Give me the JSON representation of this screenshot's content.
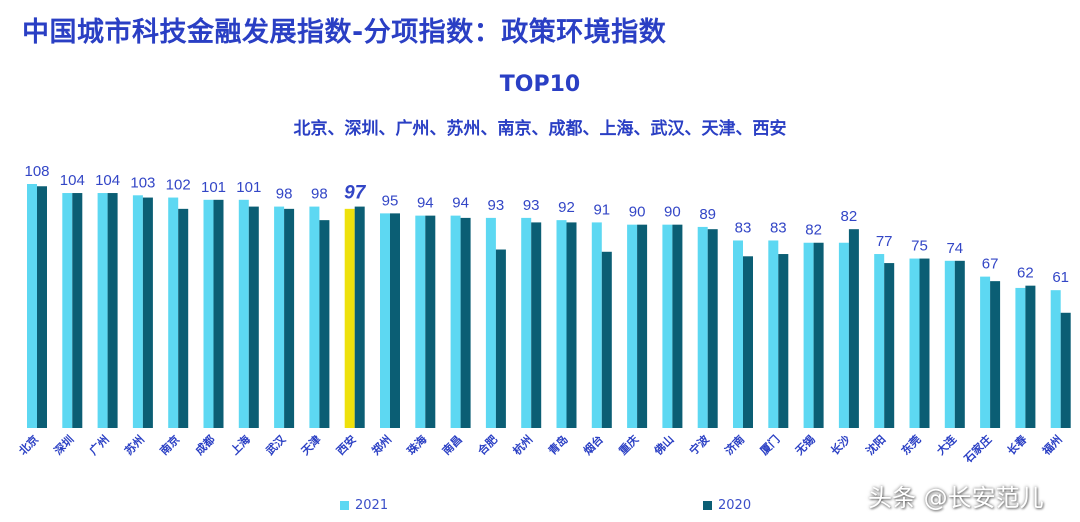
{
  "header": {
    "title": "中国城市科技金融发展指数-分项指数：政策环境指数",
    "top_label": "TOP10",
    "top_cities": "北京、深圳、广州、苏州、南京、成都、上海、武汉、天津、西安"
  },
  "legend": [
    {
      "label": "2021",
      "color": "#5dd8f2"
    },
    {
      "label": "2020",
      "color": "#0b5e74"
    }
  ],
  "highlight": {
    "city": "西安",
    "color": "#eee10c"
  },
  "watermark": "头条 @长安范儿",
  "chart_data": {
    "type": "bar",
    "categories": [
      "北京",
      "深圳",
      "广州",
      "苏州",
      "南京",
      "成都",
      "上海",
      "武汉",
      "天津",
      "西安",
      "郑州",
      "珠海",
      "南昌",
      "合肥",
      "杭州",
      "青岛",
      "烟台",
      "重庆",
      "佛山",
      "宁波",
      "济南",
      "厦门",
      "无锡",
      "长沙",
      "沈阳",
      "东莞",
      "大连",
      "石家庄",
      "长春",
      "福州"
    ],
    "series": [
      {
        "name": "2021",
        "values": [
          108,
          104,
          104,
          103,
          102,
          101,
          101,
          98,
          98,
          97,
          95,
          94,
          94,
          93,
          93,
          92,
          91,
          90,
          90,
          89,
          83,
          83,
          82,
          82,
          77,
          75,
          74,
          67,
          62,
          61
        ]
      },
      {
        "name": "2020",
        "values": [
          107,
          104,
          104,
          102,
          97,
          101,
          98,
          97,
          92,
          98,
          95,
          94,
          93,
          79,
          91,
          91,
          78,
          90,
          90,
          88,
          76,
          77,
          82,
          88,
          73,
          75,
          74,
          65,
          63,
          51
        ]
      }
    ],
    "data_labels": [
      "108",
      "104",
      "104",
      "103",
      "102",
      "101",
      "101",
      "98",
      "98",
      "97",
      "95",
      "94",
      "94",
      "93",
      "93",
      "92",
      "91",
      "90",
      "90",
      "89",
      "83",
      "83",
      "82",
      "82",
      "77",
      "75",
      "74",
      "67",
      "62",
      "61"
    ],
    "ylim": [
      0,
      108
    ],
    "grid": false,
    "legend_position": "bottom"
  }
}
